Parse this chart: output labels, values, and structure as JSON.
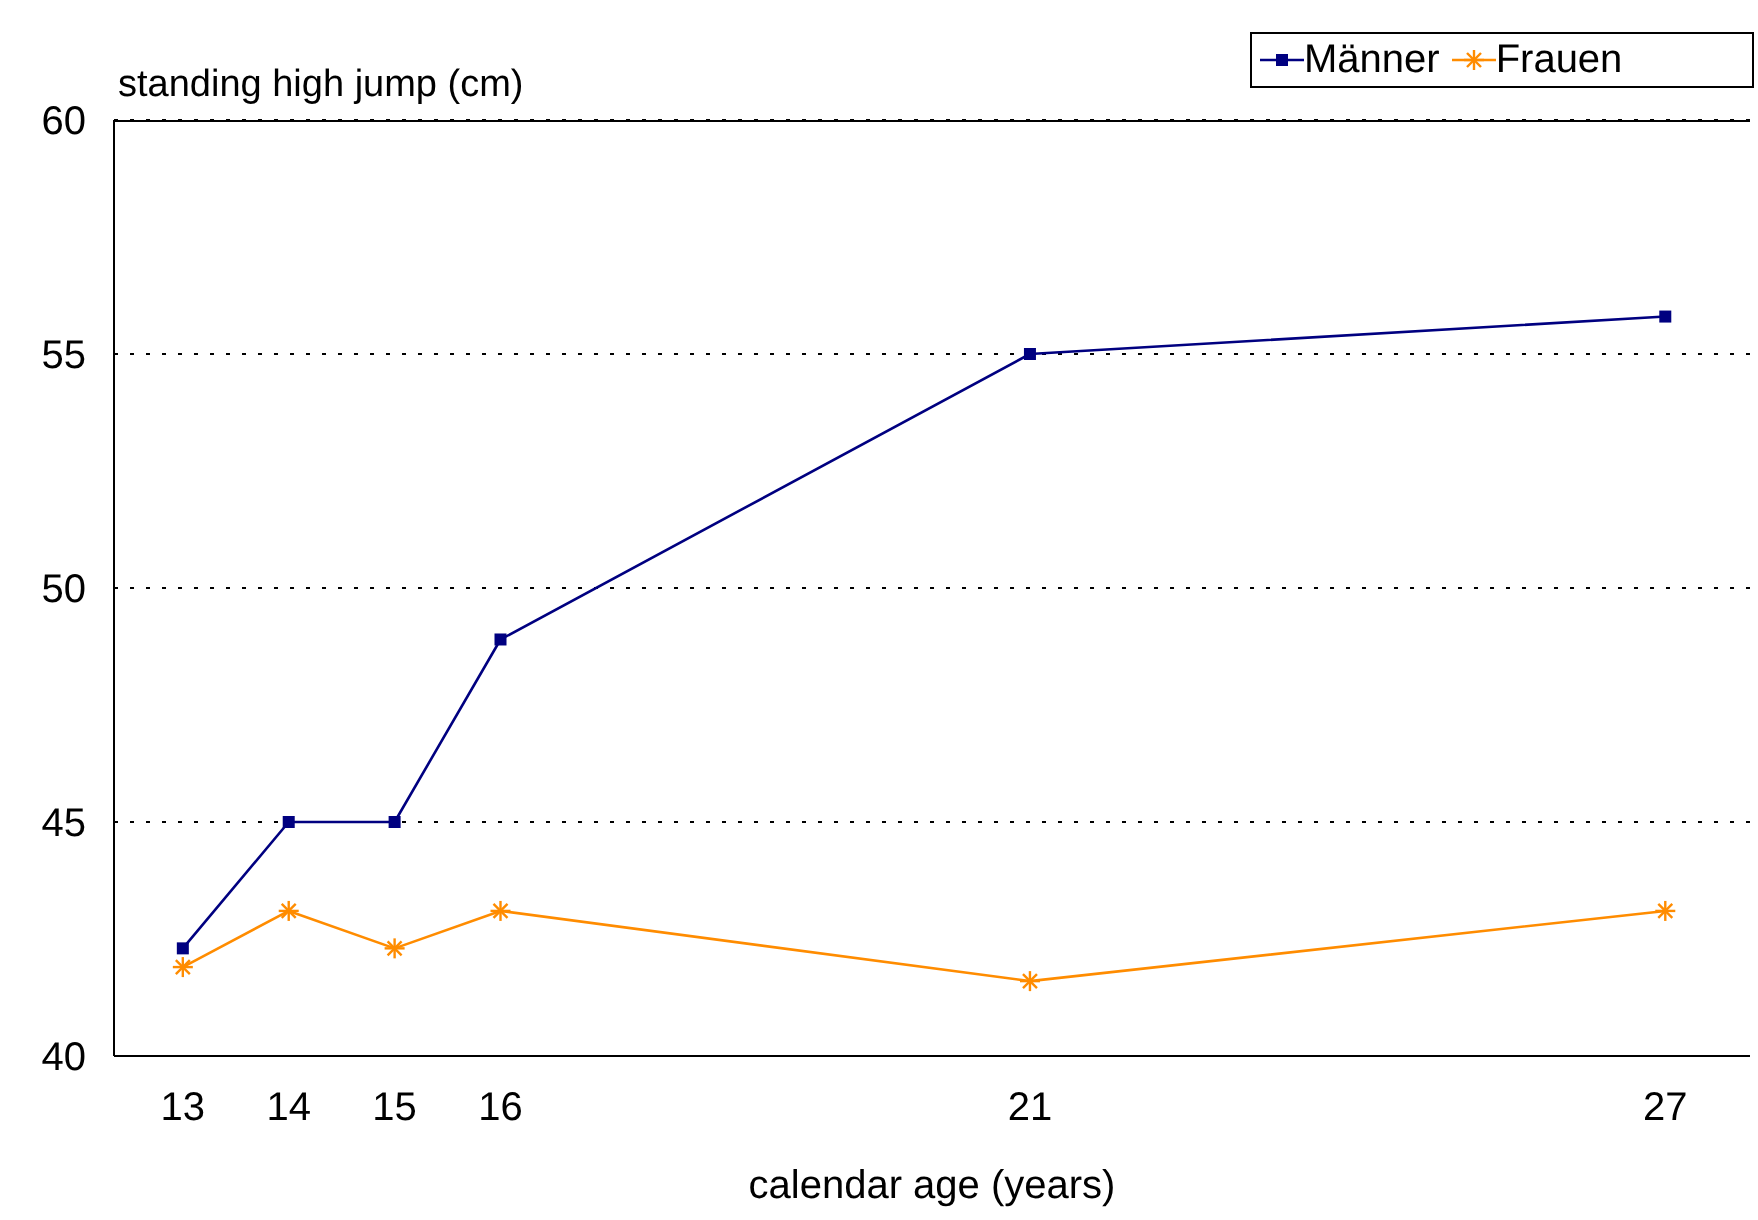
{
  "chart_data": {
    "type": "line",
    "ylabel": "standing high jump (cm)",
    "xlabel": "calendar age (years)",
    "x": [
      13,
      14,
      15,
      16,
      21,
      27
    ],
    "series": [
      {
        "name": "Männer",
        "color": "#000080",
        "values": [
          42.3,
          45,
          45,
          48.9,
          55,
          55.8
        ],
        "marker": "square"
      },
      {
        "name": "Frauen",
        "color": "#ff8c00",
        "values": [
          41.9,
          43.1,
          42.3,
          43.1,
          41.6,
          43.1
        ],
        "marker": "cross"
      }
    ],
    "xlim": [
      12.35,
      27.8
    ],
    "xticks": [
      13,
      14,
      15,
      16,
      21,
      27
    ],
    "ylim": [
      40,
      60
    ],
    "yticks": [
      40,
      45,
      50,
      55,
      60
    ],
    "grid": "y",
    "legend": "top right",
    "line_style": "solid"
  }
}
